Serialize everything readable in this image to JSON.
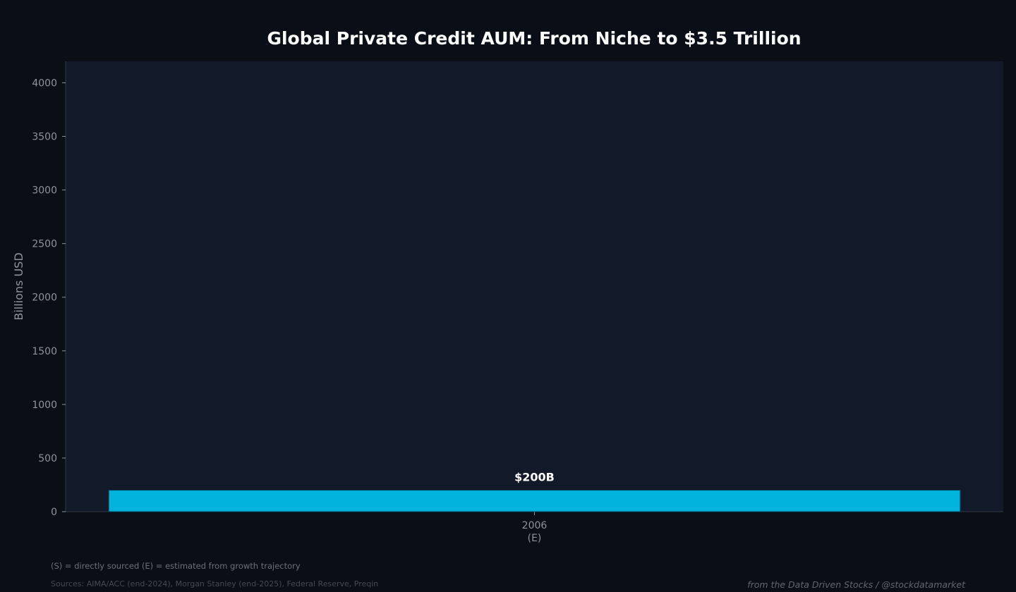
{
  "colors": {
    "background": "#0a0e16",
    "plot_background": "#121928",
    "bar": "#00b4de",
    "text": "#ffffff",
    "axis_text": "#8f949c"
  },
  "chart_data": {
    "type": "bar",
    "title": "Global Private Credit AUM: From Niche to $3.5 Trillion",
    "xlabel": "",
    "ylabel": "Billions USD",
    "ylim": [
      0,
      4200
    ],
    "yticks": [
      0,
      500,
      1000,
      1500,
      2000,
      2500,
      3000,
      3500,
      4000
    ],
    "grid": false,
    "categories": [
      {
        "year": "2006",
        "tag": "(E)"
      }
    ],
    "values": [
      200
    ],
    "data_labels": [
      "$200B"
    ]
  },
  "footer": {
    "legend_note": "(S) = directly sourced   (E) = estimated from growth trajectory",
    "sources": "Sources: AIMA/ACC (end-2024), Morgan Stanley (end-2025), Federal Reserve, Preqin",
    "credit": "from the Data Driven Stocks / @stockdatamarket"
  }
}
